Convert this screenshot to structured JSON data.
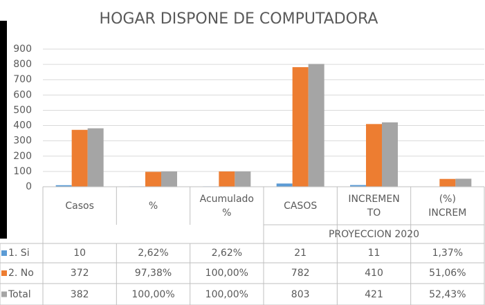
{
  "chart_data": {
    "type": "bar",
    "title": "HOGAR  DISPONE DE COMPUTADORA",
    "categories": [
      "Casos",
      "%",
      "Acumulado\n%",
      "CASOS",
      "INCREMEN\nTO",
      "(%)\nINCREM"
    ],
    "group_label": "PROYECCION 2020",
    "series": [
      {
        "name": "1. Si",
        "color": "#5b9bd5",
        "values": [
          10,
          2.62,
          2.62,
          21,
          11,
          1.37
        ],
        "value_labels": [
          "10",
          "2,62%",
          "2,62%",
          "21",
          "11",
          "1,37%"
        ]
      },
      {
        "name": "2. No",
        "color": "#ed7d31",
        "values": [
          372,
          97.38,
          100,
          782,
          410,
          51.06
        ],
        "value_labels": [
          "372",
          "97,38%",
          "100,00%",
          "782",
          "410",
          "51,06%"
        ]
      },
      {
        "name": "Total",
        "color": "#a5a5a5",
        "values": [
          382,
          100,
          100,
          803,
          421,
          52.43
        ],
        "value_labels": [
          "382",
          "100,00%",
          "100,00%",
          "803",
          "421",
          "52,43%"
        ]
      }
    ],
    "ylim": [
      0,
      900
    ],
    "yticks": [
      0,
      100,
      200,
      300,
      400,
      500,
      600,
      700,
      800,
      900
    ],
    "grid": true
  }
}
